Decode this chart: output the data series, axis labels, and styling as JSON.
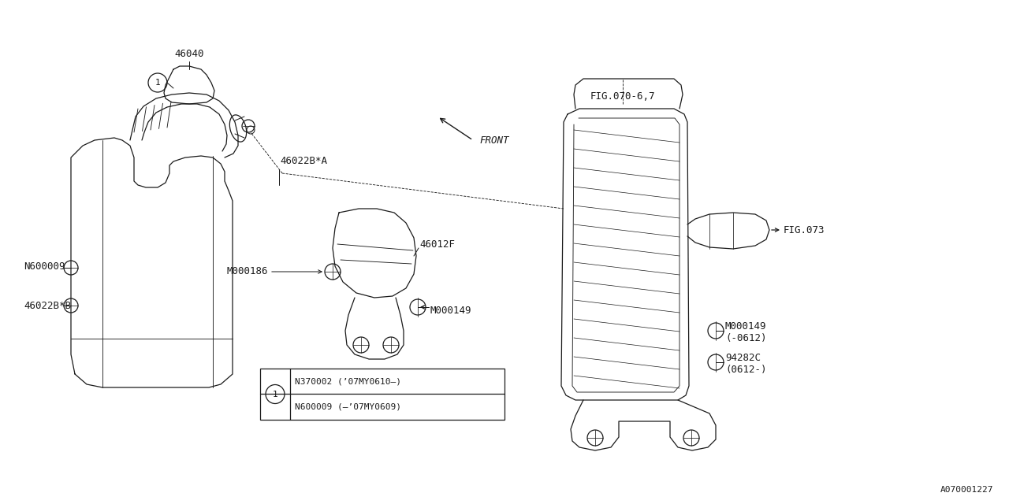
{
  "bg_color": "#ffffff",
  "line_color": "#1a1a1a",
  "lw": 0.9,
  "fig_width": 12.8,
  "fig_height": 6.4,
  "watermark": "A070001227",
  "note_lines": [
    "N600009 (–’07MY0609)",
    "N370002 (’07MY0610–)"
  ]
}
